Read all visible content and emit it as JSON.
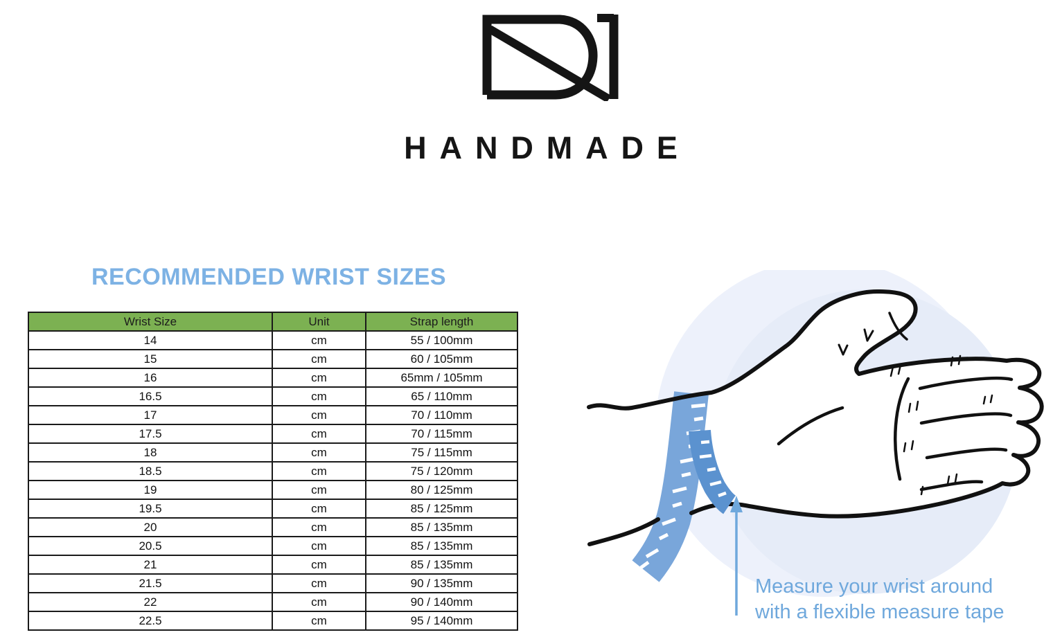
{
  "brand": {
    "monogram": "DN",
    "wordmark": "HANDMADE"
  },
  "section": {
    "title": "RECOMMENDED WRIST SIZES"
  },
  "size_table": {
    "headers": [
      "Wrist Size",
      "Unit",
      "Strap length"
    ],
    "rows": [
      [
        "14",
        "cm",
        "55 / 100mm"
      ],
      [
        "15",
        "cm",
        "60 / 105mm"
      ],
      [
        "16",
        "cm",
        "65mm / 105mm"
      ],
      [
        "16.5",
        "cm",
        "65 / 110mm"
      ],
      [
        "17",
        "cm",
        "70 / 110mm"
      ],
      [
        "17.5",
        "cm",
        "70 / 115mm"
      ],
      [
        "18",
        "cm",
        "75 / 115mm"
      ],
      [
        "18.5",
        "cm",
        "75 / 120mm"
      ],
      [
        "19",
        "cm",
        "80 / 125mm"
      ],
      [
        "19.5",
        "cm",
        "85 / 125mm"
      ],
      [
        "20",
        "cm",
        "85 / 135mm"
      ],
      [
        "20.5",
        "cm",
        "85 / 135mm"
      ],
      [
        "21",
        "cm",
        "85 / 135mm"
      ],
      [
        "21.5",
        "cm",
        "90 / 135mm"
      ],
      [
        "22",
        "cm",
        "90 / 140mm"
      ],
      [
        "22.5",
        "cm",
        "95 / 140mm"
      ]
    ]
  },
  "illustration": {
    "caption_line1": "Measure your wrist around",
    "caption_line2": "with a flexible measure tape"
  },
  "colors": {
    "title_blue": "#7db2e4",
    "header_green": "#7cb152",
    "caption_blue": "#6fa8dc",
    "tape_light": "#79a6da",
    "tape_dark": "#5b92cf",
    "circle_outer": "#edf1fb",
    "circle_inner": "#e6ecf8",
    "ink": "#151515"
  }
}
